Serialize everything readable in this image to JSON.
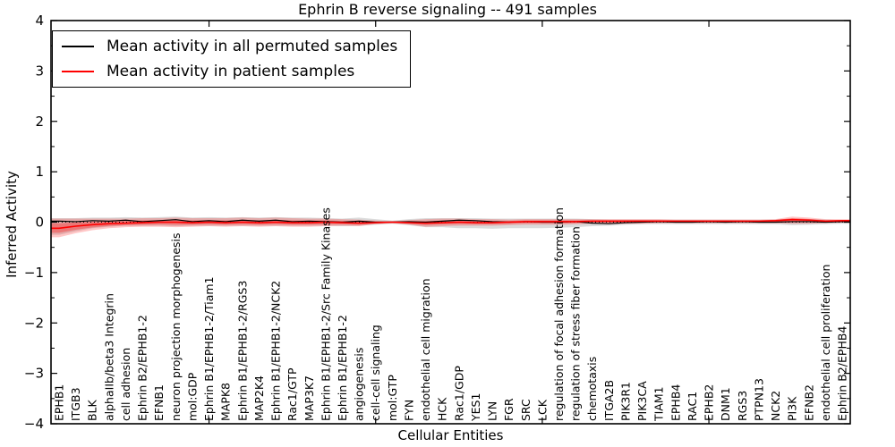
{
  "title": "Ephrin B reverse signaling -- 491 samples",
  "legend": {
    "items": [
      {
        "label": "Mean activity in all permuted samples",
        "color": "#000000"
      },
      {
        "label": "Mean activity in patient samples",
        "color": "#ff0000"
      }
    ]
  },
  "colors": {
    "permuted_line": "#000000",
    "patient_line": "#ff0000",
    "patient_band": "rgba(255,0,0,0.22)",
    "patient_band_inner": "rgba(255,0,0,0.30)",
    "permuted_band": "rgba(0,0,0,0.14)",
    "axis": "#000000",
    "background": "#ffffff"
  },
  "chart_data": {
    "type": "line",
    "title": "Ephrin B reverse signaling -- 491 samples",
    "xlabel": "Cellular Entities",
    "ylabel": "Inferred Activity",
    "ylim": [
      -4,
      4
    ],
    "yticks": [
      -4,
      -3,
      -2,
      -1,
      0,
      1,
      2,
      3,
      4
    ],
    "grid": false,
    "legend_position": "upper left",
    "zero_reference_line": true,
    "top_tick_indices": [
      9,
      19,
      29,
      39
    ],
    "categories": [
      "EPHB1",
      "ITGB3",
      "BLK",
      "alphaIIb/beta3 Integrin",
      "cell adhesion",
      "Ephrin B2/EPHB1-2",
      "EFNB1",
      "neuron projection morphogenesis",
      "mol:GDP",
      "Ephrin B1/EPHB1-2/Tiam1",
      "MAPK8",
      "Ephrin B1/EPHB1-2/RGS3",
      "MAP2K4",
      "Ephrin B1/EPHB1-2/NCK2",
      "Rac1/GTP",
      "MAP3K7",
      "Ephrin B1/EPHB1-2/Src Family Kinases",
      "Ephrin B1/EPHB1-2",
      "angiogenesis",
      "cell-cell signaling",
      "mol:GTP",
      "FYN",
      "endothelial cell migration",
      "HCK",
      "Rac1/GDP",
      "YES1",
      "LYN",
      "FGR",
      "SRC",
      "LCK",
      "regulation of focal adhesion formation",
      "regulation of stress fiber formation",
      "chemotaxis",
      "ITGA2B",
      "PIK3R1",
      "PIK3CA",
      "TIAM1",
      "EPHB4",
      "RAC1",
      "EPHB2",
      "DNM1",
      "RGS3",
      "PTPN13",
      "NCK2",
      "PI3K",
      "EFNB2",
      "endothelial cell proliferation",
      "Ephrin B2/EPHB4"
    ],
    "series": [
      {
        "name": "Mean activity in all permuted samples",
        "color": "#000000",
        "values": [
          0.02,
          0.01,
          0.03,
          0.02,
          0.04,
          0.01,
          0.03,
          0.05,
          0.01,
          0.03,
          0.01,
          0.04,
          0.02,
          0.04,
          0.01,
          0.02,
          0.01,
          0.0,
          0.02,
          0.0,
          0.0,
          0.01,
          0.0,
          0.02,
          0.04,
          0.03,
          0.01,
          0.0,
          0.01,
          0.0,
          0.0,
          0.01,
          -0.02,
          -0.03,
          -0.01,
          0.0,
          0.01,
          0.0,
          0.0,
          0.01,
          0.0,
          0.01,
          0.0,
          0.0,
          0.01,
          0.01,
          0.0,
          0.01
        ],
        "band_low": [
          -0.25,
          -0.18,
          -0.12,
          -0.09,
          -0.07,
          -0.07,
          -0.07,
          -0.08,
          -0.07,
          -0.07,
          -0.07,
          -0.07,
          -0.07,
          -0.07,
          -0.07,
          -0.07,
          -0.07,
          -0.08,
          -0.07,
          -0.05,
          -0.03,
          -0.06,
          -0.1,
          -0.1,
          -0.12,
          -0.12,
          -0.13,
          -0.12,
          -0.12,
          -0.12,
          -0.11,
          -0.1,
          -0.08,
          -0.07,
          -0.05,
          -0.04,
          -0.04,
          -0.04,
          -0.04,
          -0.04,
          -0.04,
          -0.04,
          -0.04,
          -0.04,
          -0.06,
          -0.05,
          -0.04,
          -0.03
        ],
        "band_high": [
          0.08,
          0.08,
          0.09,
          0.09,
          0.1,
          0.09,
          0.1,
          0.11,
          0.09,
          0.1,
          0.09,
          0.1,
          0.09,
          0.1,
          0.09,
          0.09,
          0.08,
          0.07,
          0.09,
          0.06,
          0.03,
          0.06,
          0.08,
          0.08,
          0.08,
          0.08,
          0.07,
          0.07,
          0.07,
          0.07,
          0.07,
          0.07,
          0.06,
          0.05,
          0.05,
          0.05,
          0.05,
          0.05,
          0.05,
          0.05,
          0.05,
          0.05,
          0.05,
          0.05,
          0.07,
          0.06,
          0.05,
          0.04
        ]
      },
      {
        "name": "Mean activity in patient samples",
        "color": "#ff0000",
        "values": [
          -0.12,
          -0.08,
          -0.05,
          -0.03,
          -0.02,
          -0.01,
          0.0,
          0.0,
          -0.01,
          0.0,
          -0.01,
          0.0,
          -0.01,
          0.0,
          -0.01,
          -0.01,
          0.0,
          -0.01,
          -0.02,
          -0.01,
          0.0,
          -0.01,
          -0.02,
          -0.01,
          0.0,
          -0.01,
          -0.01,
          0.0,
          0.01,
          0.01,
          0.01,
          0.01,
          0.02,
          0.02,
          0.02,
          0.02,
          0.02,
          0.02,
          0.02,
          0.02,
          0.02,
          0.02,
          0.02,
          0.03,
          0.05,
          0.04,
          0.02,
          0.03
        ],
        "band_low": [
          -0.3,
          -0.22,
          -0.16,
          -0.12,
          -0.1,
          -0.09,
          -0.09,
          -0.1,
          -0.09,
          -0.08,
          -0.09,
          -0.08,
          -0.09,
          -0.08,
          -0.09,
          -0.09,
          -0.08,
          -0.07,
          -0.08,
          -0.04,
          -0.02,
          -0.05,
          -0.09,
          -0.08,
          -0.07,
          -0.07,
          -0.07,
          -0.06,
          -0.05,
          -0.05,
          -0.05,
          -0.04,
          -0.03,
          -0.04,
          -0.03,
          -0.03,
          -0.02,
          -0.02,
          -0.02,
          -0.02,
          -0.02,
          -0.02,
          -0.02,
          -0.02,
          -0.03,
          -0.03,
          -0.02,
          -0.01
        ],
        "band_high": [
          0.07,
          0.07,
          0.07,
          0.07,
          0.07,
          0.08,
          0.08,
          0.09,
          0.08,
          0.08,
          0.08,
          0.09,
          0.08,
          0.09,
          0.08,
          0.07,
          0.07,
          0.06,
          0.05,
          0.03,
          0.02,
          0.04,
          0.06,
          0.07,
          0.07,
          0.06,
          0.06,
          0.05,
          0.06,
          0.06,
          0.06,
          0.06,
          0.06,
          0.06,
          0.06,
          0.06,
          0.06,
          0.05,
          0.05,
          0.05,
          0.05,
          0.05,
          0.05,
          0.06,
          0.11,
          0.09,
          0.06,
          0.06
        ]
      }
    ]
  }
}
